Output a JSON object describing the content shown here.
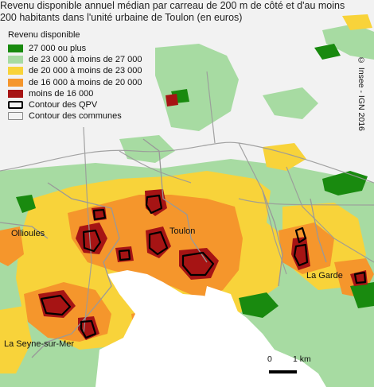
{
  "title_lines": [
    "Revenu disponible annuel médian par carreau de 200 m de côté et d'au moins",
    "200 habitants dans l'unité urbaine de Toulon (en euros)"
  ],
  "legend": {
    "heading": "Revenu disponible",
    "items": [
      {
        "label": "27 000 ou plus",
        "color": "#198a0f"
      },
      {
        "label": "de 23 000 à moins de 27 000",
        "color": "#a7dba2"
      },
      {
        "label": "de 20 000 à moins de 23 000",
        "color": "#f8d33a"
      },
      {
        "label": "de 16 000 à moins de 20 000",
        "color": "#f5962c"
      },
      {
        "label": "moins de 16 000",
        "color": "#a61414"
      },
      {
        "label": "Contour des QPV",
        "icon": "qpv-outline-icon"
      },
      {
        "label": "Contour des communes",
        "icon": "commune-outline-icon"
      }
    ]
  },
  "credit": "© Insee - IGN 2016",
  "places": [
    "Ollioules",
    "Toulon",
    "La Garde",
    "La Seyne-sur-Mer"
  ],
  "scale": {
    "zero": "0",
    "one": "1 km"
  },
  "colors": {
    "sea": "#ffffff",
    "outside": "#f2f2f2",
    "qpv_outline": "#000000",
    "commune_outline": "#999999"
  }
}
